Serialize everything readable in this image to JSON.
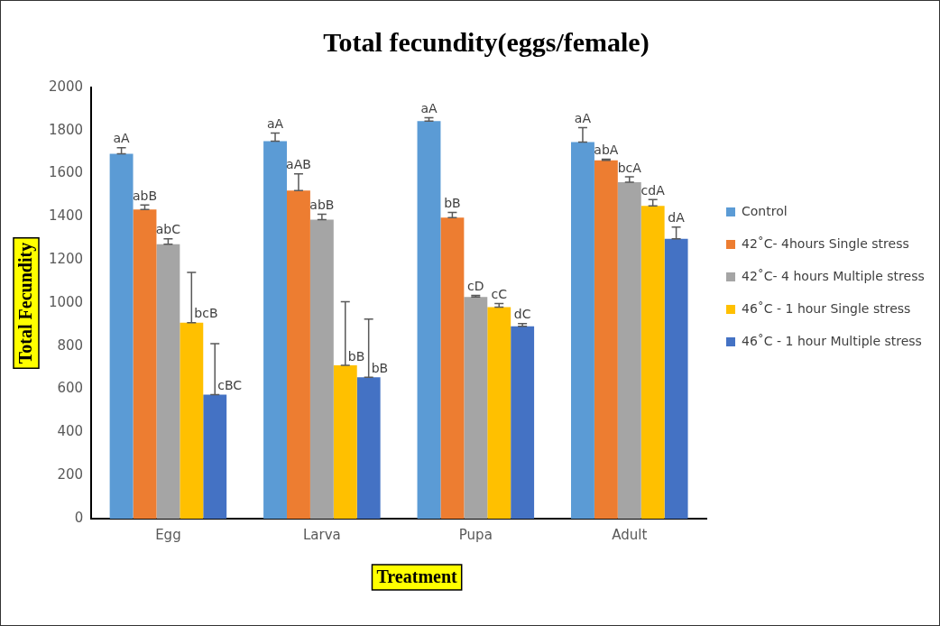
{
  "chart_data": {
    "type": "bar",
    "title": "Total fecundity(eggs/female)",
    "xlabel": "Treatment",
    "ylabel": "Total Fecundity",
    "categories": [
      "Egg",
      "Larva",
      "Pupa",
      "Adult"
    ],
    "series": [
      {
        "name": "Control",
        "color": "#5b9bd5",
        "values": [
          1692,
          1751,
          1844,
          1747
        ],
        "errors": [
          [
            1692,
            1721
          ],
          [
            1751,
            1789
          ],
          [
            1844,
            1860
          ],
          [
            1747,
            1814
          ]
        ],
        "value_labels": [
          "aA",
          "aA",
          "aA",
          "aA"
        ]
      },
      {
        "name": "42˚C- 4hours Single stress",
        "color": "#ed7d31",
        "values": [
          1434,
          1522,
          1396,
          1662
        ],
        "errors": [
          [
            1434,
            1455
          ],
          [
            1522,
            1599
          ],
          [
            1396,
            1421
          ],
          [
            1662,
            1667
          ]
        ],
        "value_labels": [
          "abB",
          "aAB",
          "bB",
          "abA"
        ]
      },
      {
        "name": "42˚C- 4 hours Multiple stress",
        "color": "#a5a5a5",
        "values": [
          1273,
          1387,
          1028,
          1561
        ],
        "errors": [
          [
            1273,
            1298
          ],
          [
            1387,
            1412
          ],
          [
            1028,
            1036
          ],
          [
            1561,
            1586
          ]
        ],
        "value_labels": [
          "abC",
          "abB",
          "cD",
          "bcA"
        ]
      },
      {
        "name": "46˚C - 1 hour Single stress",
        "color": "#ffc000",
        "values": [
          909,
          711,
          981,
          1451
        ],
        "errors": [
          [
            909,
            1142
          ],
          [
            711,
            1006
          ],
          [
            981,
            998
          ],
          [
            1451,
            1480
          ]
        ],
        "value_labels": [
          "bcB",
          "bB",
          "cC",
          "cdA"
        ]
      },
      {
        "name": "46˚C - 1 hour Multiple stress",
        "color": "#4472c4",
        "values": [
          575,
          656,
          892,
          1298
        ],
        "errors": [
          [
            575,
            812
          ],
          [
            656,
            926
          ],
          [
            892,
            905
          ],
          [
            1298,
            1353
          ]
        ],
        "value_labels": [
          "cBC",
          "bB",
          "dC",
          "dA"
        ]
      }
    ],
    "ylim": [
      0,
      2000
    ],
    "yticks": [
      0,
      200,
      400,
      600,
      800,
      1000,
      1200,
      1400,
      1600,
      1800,
      2000
    ],
    "grid": false,
    "legend": "right"
  }
}
